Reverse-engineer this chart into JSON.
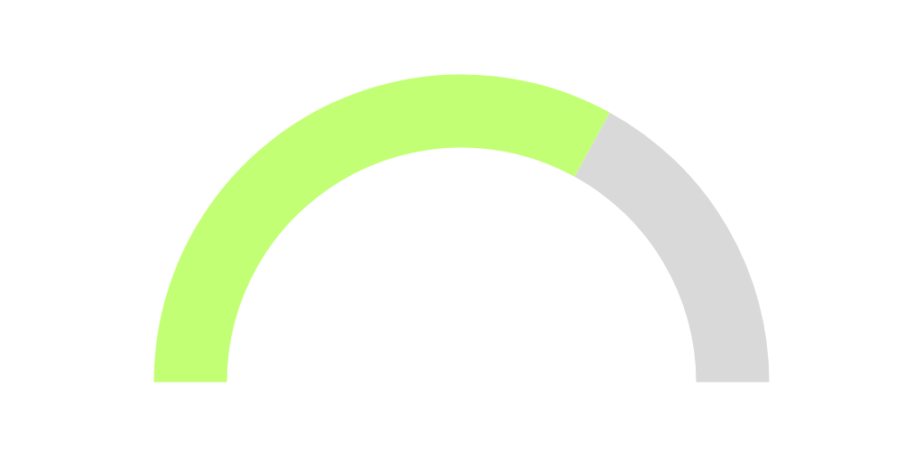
{
  "chart_data": {
    "type": "donut",
    "categories": [
      null,
      null
    ],
    "values": [
      66,
      34
    ],
    "colors": [
      "#c2ff74",
      "#d9d9d9"
    ]
  }
}
